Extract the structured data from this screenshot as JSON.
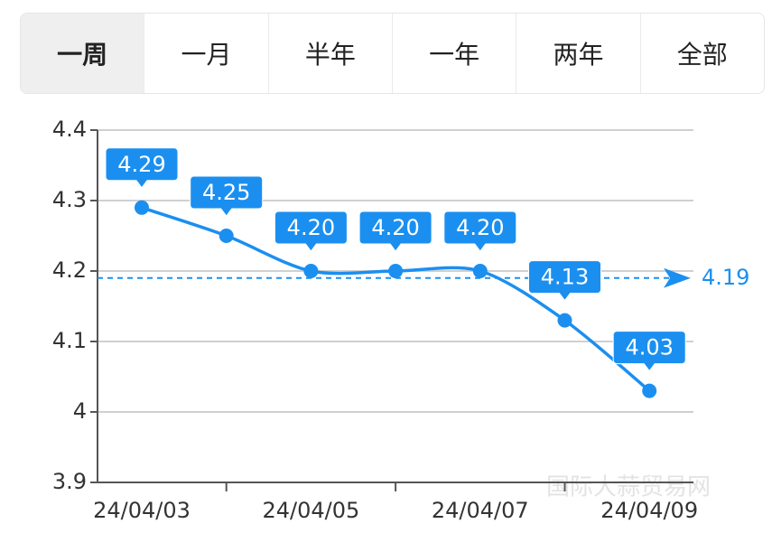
{
  "tabs": {
    "items": [
      "一周",
      "一月",
      "半年",
      "一年",
      "两年",
      "全部"
    ],
    "active": 0
  },
  "chart_data": {
    "type": "line",
    "categories": [
      "24/04/03",
      null,
      "24/04/05",
      null,
      "24/04/07",
      null,
      "24/04/09"
    ],
    "series": [
      {
        "color": "#1b8ff0",
        "values": [
          4.29,
          4.25,
          4.2,
          4.2,
          4.2,
          4.13,
          4.03
        ],
        "value_labels": [
          "4.29",
          "4.25",
          "4.20",
          "4.20",
          "4.20",
          "4.13",
          "4.03"
        ]
      }
    ],
    "markline": 4.19,
    "ylim": [
      3.9,
      4.4
    ],
    "yticks": [
      3.9,
      4,
      4.1,
      4.2,
      4.3,
      4.4
    ],
    "grid": true,
    "watermark": "国际大蒜贸易网"
  }
}
